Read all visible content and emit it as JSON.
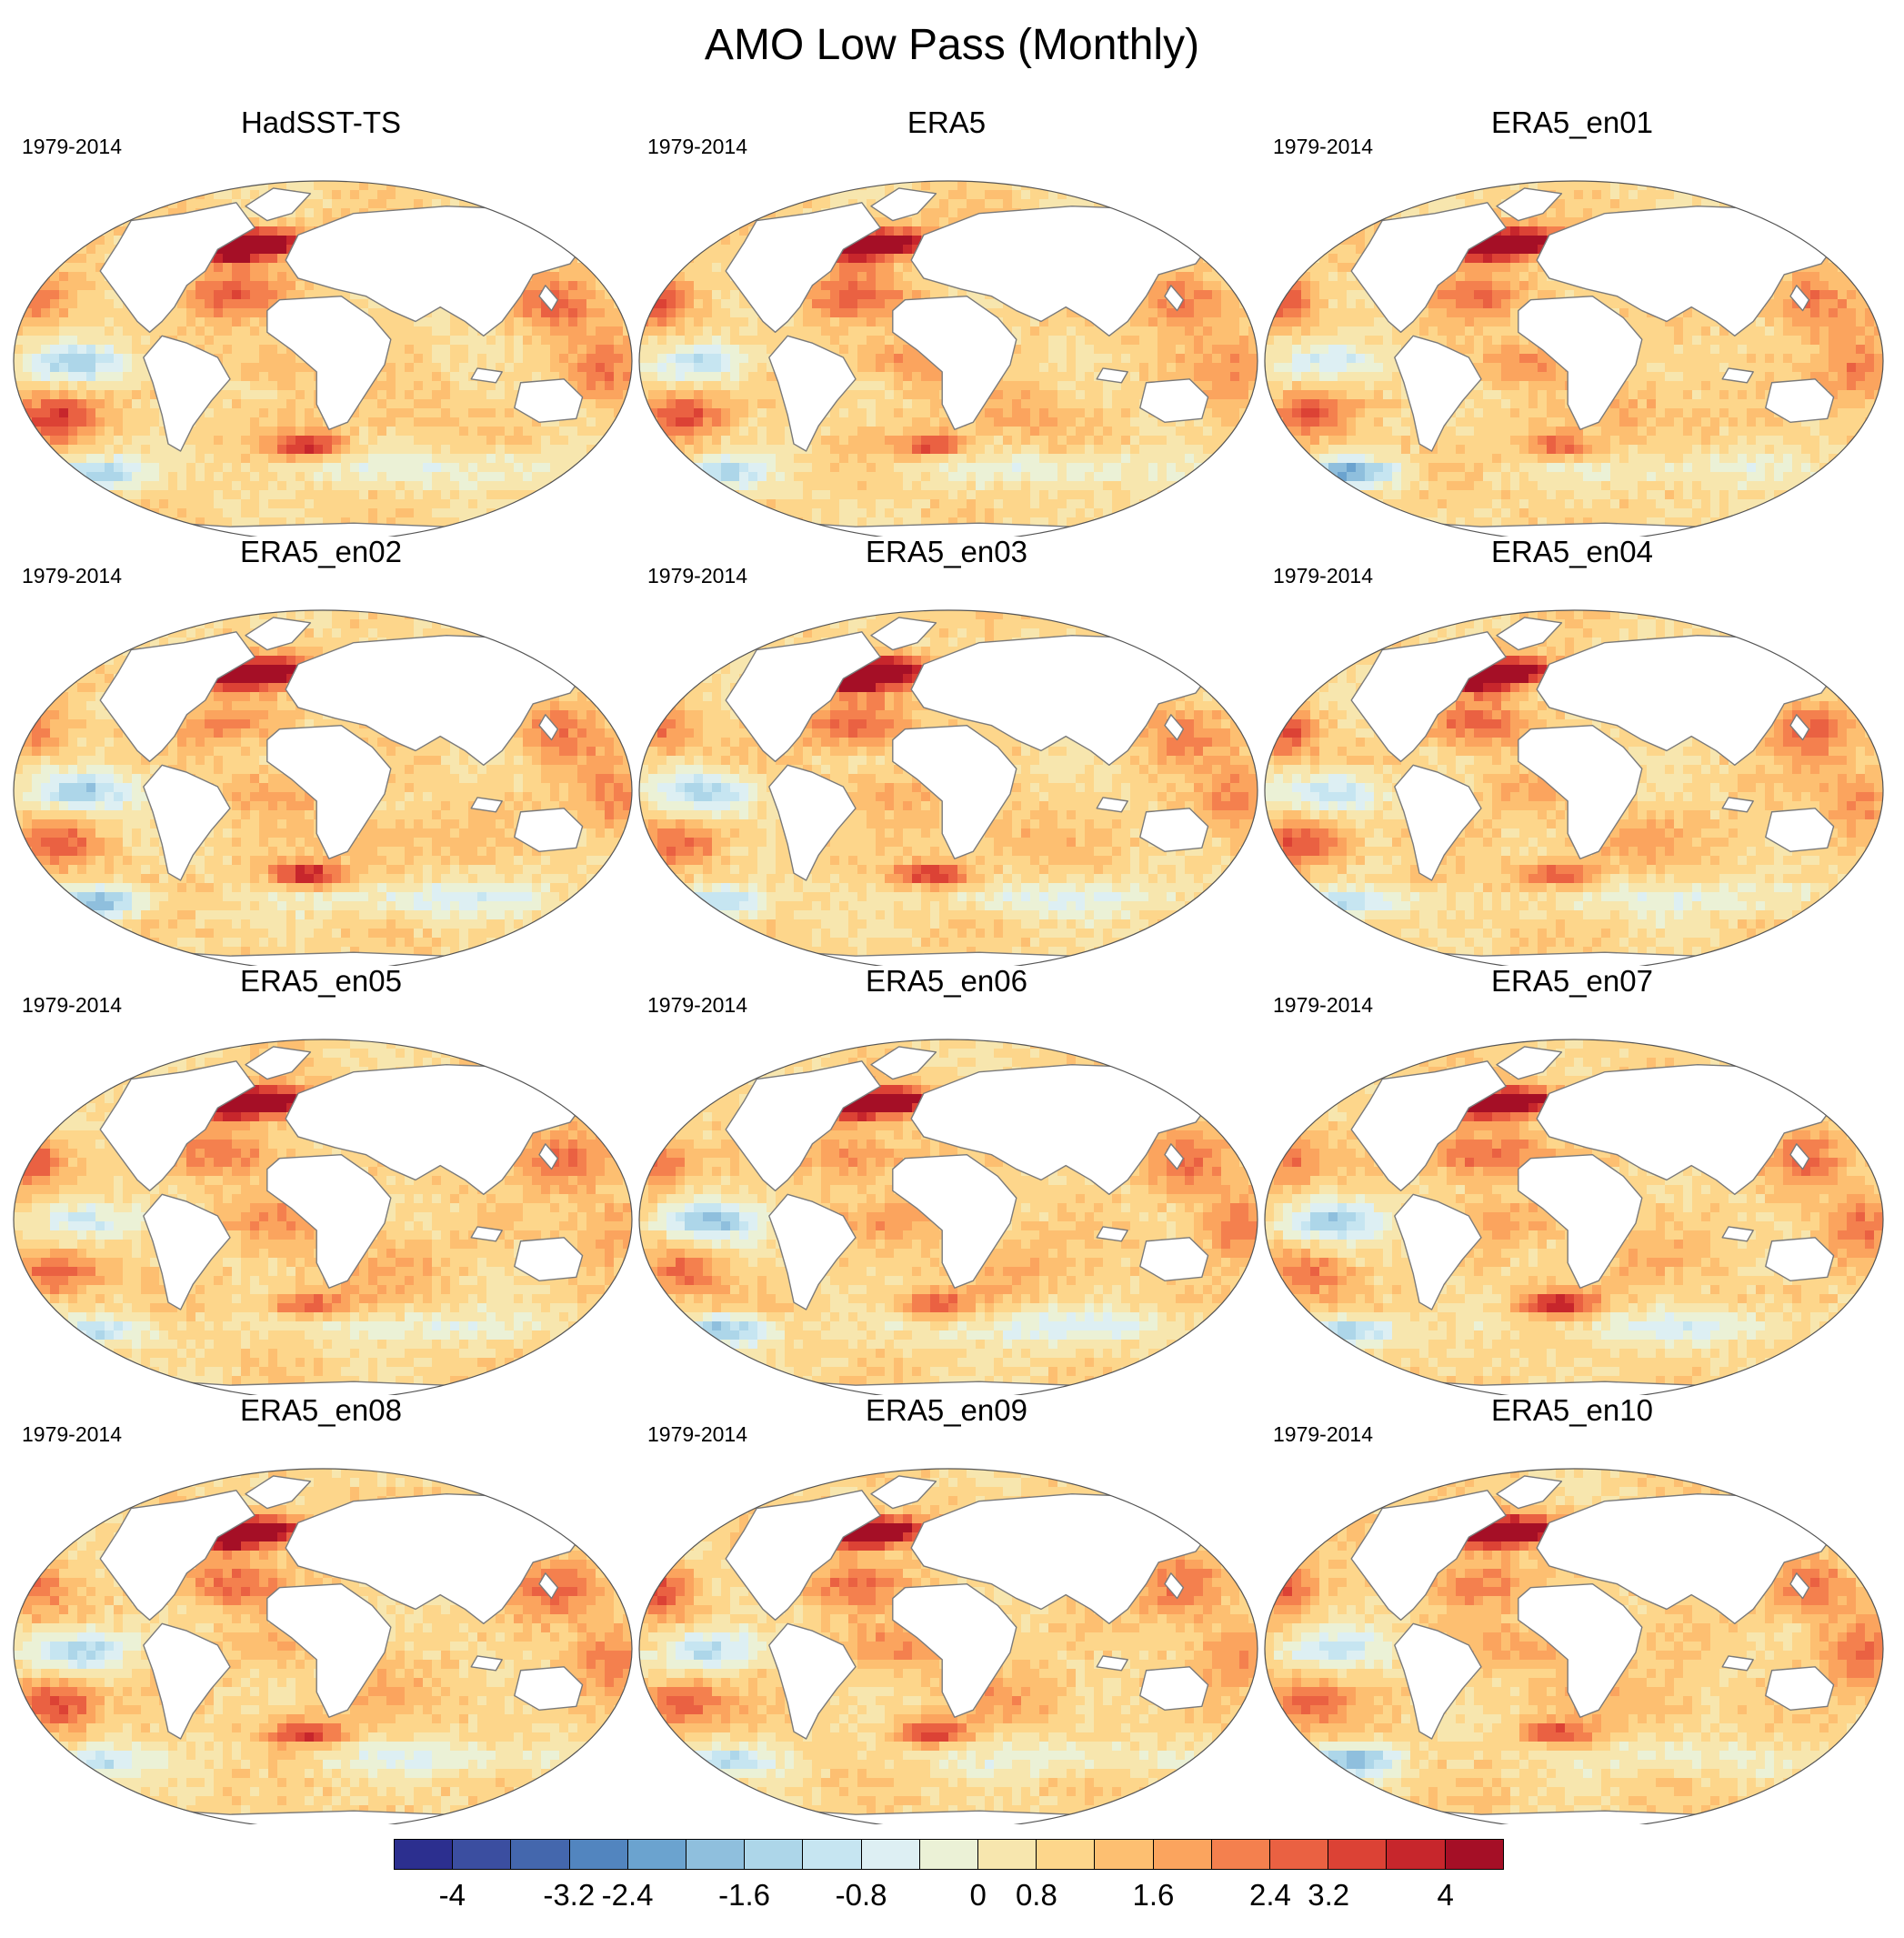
{
  "title": "AMO Low Pass (Monthly)",
  "period": "1979-2014",
  "colors": {
    "land": "#ffffff",
    "coast": "#7a7a7a",
    "scale": [
      "#2c2f8f",
      "#3b4ea0",
      "#4467ad",
      "#5285bf",
      "#6ba3cf",
      "#8fbfdd",
      "#add6e9",
      "#c6e5f1",
      "#ddeff3",
      "#ebf1d6",
      "#f7e6ae",
      "#fdd68b",
      "#fdbf71",
      "#fba45e",
      "#f4804e",
      "#ea6142",
      "#dc4235",
      "#c7262c",
      "#a50f26"
    ]
  },
  "panels": [
    {
      "title": "HadSST-TS"
    },
    {
      "title": "ERA5"
    },
    {
      "title": "ERA5_en01"
    },
    {
      "title": "ERA5_en02"
    },
    {
      "title": "ERA5_en03"
    },
    {
      "title": "ERA5_en04"
    },
    {
      "title": "ERA5_en05"
    },
    {
      "title": "ERA5_en06"
    },
    {
      "title": "ERA5_en07"
    },
    {
      "title": "ERA5_en08"
    },
    {
      "title": "ERA5_en09"
    },
    {
      "title": "ERA5_en10"
    }
  ],
  "colorbar": {
    "min": -4.4,
    "max": 4.4,
    "step": 0.4,
    "tick_labels": [
      "-4",
      "-3.2",
      "-2.4",
      "-1.6",
      "-0.8",
      "0",
      "0.8",
      "1.6",
      "2.4",
      "3.2",
      "4"
    ]
  }
}
